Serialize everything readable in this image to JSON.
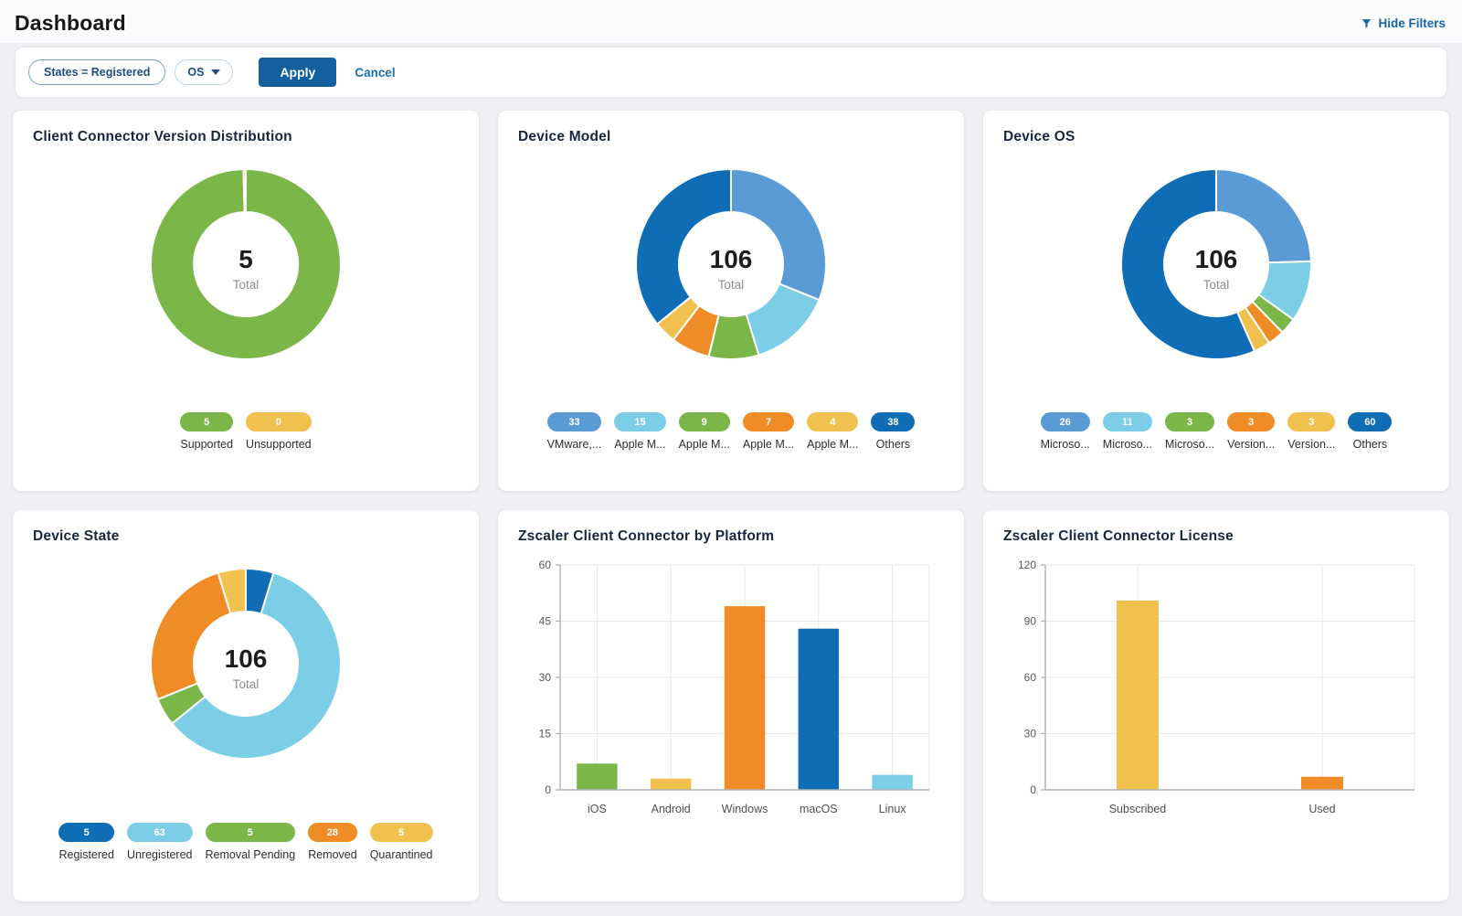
{
  "header": {
    "title": "Dashboard",
    "hide_filters_label": "Hide Filters"
  },
  "filter_bar": {
    "states_filter_label": "States = Registered",
    "os_filter_label": "OS",
    "apply_label": "Apply",
    "cancel_label": "Cancel"
  },
  "palette": {
    "blue": "#5b9bd5",
    "light_blue": "#7ccde6",
    "green": "#7ab648",
    "orange": "#ef8c25",
    "yellow": "#f1c14f",
    "dark_blue": "#0f6db6",
    "accent": "#14609e",
    "link": "#1e6fb3"
  },
  "cards": [
    {
      "title": "Client Connector Version Distribution",
      "type": "donut",
      "center": {
        "value": "5",
        "label": "Total"
      },
      "slices": [
        {
          "label": "Supported",
          "value": 5,
          "color": "#7ab648"
        },
        {
          "label": "Unsupported",
          "value": 0,
          "color": "#f1c14f"
        }
      ]
    },
    {
      "title": "Device Model",
      "type": "donut",
      "center": {
        "value": "106",
        "label": "Total"
      },
      "slices": [
        {
          "label": "VMware,...",
          "value": 33,
          "color": "#5b9bd5"
        },
        {
          "label": "Apple M...",
          "value": 15,
          "color": "#7ccde6"
        },
        {
          "label": "Apple M...",
          "value": 9,
          "color": "#7ab648"
        },
        {
          "label": "Apple M...",
          "value": 7,
          "color": "#ef8c25"
        },
        {
          "label": "Apple M...",
          "value": 4,
          "color": "#f1c14f"
        },
        {
          "label": "Others",
          "value": 38,
          "color": "#0f6db6"
        }
      ]
    },
    {
      "title": "Device OS",
      "type": "donut",
      "center": {
        "value": "106",
        "label": "Total"
      },
      "slices": [
        {
          "label": "Microso...",
          "value": 26,
          "color": "#5b9bd5"
        },
        {
          "label": "Microso...",
          "value": 11,
          "color": "#7ccde6"
        },
        {
          "label": "Microso...",
          "value": 3,
          "color": "#7ab648"
        },
        {
          "label": "Version...",
          "value": 3,
          "color": "#ef8c25"
        },
        {
          "label": "Version...",
          "value": 3,
          "color": "#f1c14f"
        },
        {
          "label": "Others",
          "value": 60,
          "color": "#0f6db6"
        }
      ]
    },
    {
      "title": "Device State",
      "type": "donut",
      "center": {
        "value": "106",
        "label": "Total"
      },
      "slices": [
        {
          "label": "Registered",
          "value": 5,
          "color": "#0f6db6"
        },
        {
          "label": "Unregistered",
          "value": 63,
          "color": "#7ccde6"
        },
        {
          "label": "Removal Pending",
          "value": 5,
          "color": "#7ab648"
        },
        {
          "label": "Removed",
          "value": 28,
          "color": "#ef8c25"
        },
        {
          "label": "Quarantined",
          "value": 5,
          "color": "#f1c14f"
        }
      ]
    },
    {
      "title": "Zscaler Client Connector by Platform",
      "type": "bar",
      "chart": {
        "categories": [
          "iOS",
          "Android",
          "Windows",
          "macOS",
          "Linux"
        ],
        "values": [
          7,
          3,
          49,
          43,
          4
        ],
        "colors": [
          "#7ab648",
          "#f1c14f",
          "#ef8c25",
          "#0f6db6",
          "#7ccde6"
        ],
        "ymax": 60,
        "yticks": [
          0,
          15,
          30,
          45,
          60
        ]
      }
    },
    {
      "title": "Zscaler Client Connector License",
      "type": "bar",
      "chart": {
        "categories": [
          "Subscribed",
          "Used"
        ],
        "values": [
          101,
          7
        ],
        "colors": [
          "#f1c14f",
          "#ef8c25"
        ],
        "ymax": 120,
        "yticks": [
          0,
          30,
          60,
          90,
          120
        ]
      }
    }
  ],
  "chart_data": [
    {
      "type": "pie",
      "title": "Client Connector Version Distribution",
      "labels": [
        "Supported",
        "Unsupported"
      ],
      "values": [
        5,
        0
      ],
      "total": 5,
      "center_text": [
        "5",
        "Total"
      ],
      "colors": [
        "#7ab648",
        "#f1c14f"
      ],
      "legend_position": "bottom"
    },
    {
      "type": "pie",
      "title": "Device Model",
      "labels": [
        "VMware,...",
        "Apple M...",
        "Apple M...",
        "Apple M...",
        "Apple M...",
        "Others"
      ],
      "values": [
        33,
        15,
        9,
        7,
        4,
        38
      ],
      "total": 106,
      "center_text": [
        "106",
        "Total"
      ],
      "colors": [
        "#5b9bd5",
        "#7ccde6",
        "#7ab648",
        "#ef8c25",
        "#f1c14f",
        "#0f6db6"
      ],
      "legend_position": "bottom"
    },
    {
      "type": "pie",
      "title": "Device OS",
      "labels": [
        "Microso...",
        "Microso...",
        "Microso...",
        "Version...",
        "Version...",
        "Others"
      ],
      "values": [
        26,
        11,
        3,
        3,
        3,
        60
      ],
      "total": 106,
      "center_text": [
        "106",
        "Total"
      ],
      "colors": [
        "#5b9bd5",
        "#7ccde6",
        "#7ab648",
        "#ef8c25",
        "#f1c14f",
        "#0f6db6"
      ],
      "legend_position": "bottom"
    },
    {
      "type": "pie",
      "title": "Device State",
      "labels": [
        "Registered",
        "Unregistered",
        "Removal Pending",
        "Removed",
        "Quarantined"
      ],
      "values": [
        5,
        63,
        5,
        28,
        5
      ],
      "total": 106,
      "center_text": [
        "106",
        "Total"
      ],
      "colors": [
        "#0f6db6",
        "#7ccde6",
        "#7ab648",
        "#ef8c25",
        "#f1c14f"
      ],
      "legend_position": "bottom"
    },
    {
      "type": "bar",
      "title": "Zscaler Client Connector by Platform",
      "categories": [
        "iOS",
        "Android",
        "Windows",
        "macOS",
        "Linux"
      ],
      "values": [
        7,
        3,
        49,
        43,
        4
      ],
      "colors": [
        "#7ab648",
        "#f1c14f",
        "#ef8c25",
        "#0f6db6",
        "#7ccde6"
      ],
      "xlabel": "",
      "ylabel": "",
      "ylim": [
        0,
        60
      ],
      "yticks": [
        0,
        15,
        30,
        45,
        60
      ],
      "grid": true
    },
    {
      "type": "bar",
      "title": "Zscaler Client Connector License",
      "categories": [
        "Subscribed",
        "Used"
      ],
      "values": [
        101,
        7
      ],
      "colors": [
        "#f1c14f",
        "#ef8c25"
      ],
      "xlabel": "",
      "ylabel": "",
      "ylim": [
        0,
        120
      ],
      "yticks": [
        0,
        30,
        60,
        90,
        120
      ],
      "grid": true
    }
  ]
}
